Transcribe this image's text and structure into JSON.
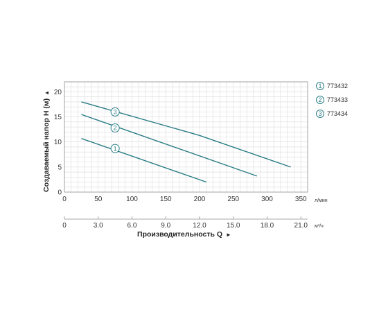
{
  "chart_data": {
    "type": "line",
    "ylabel": "Создаваемый напор H (м)",
    "xlabel": "Производительность Q",
    "y_axis_arrow": "▲",
    "x_axis_arrow": "►",
    "ylim": [
      0,
      22
    ],
    "y_ticks": [
      "0",
      "5",
      "10",
      "15",
      "20"
    ],
    "x_primary": {
      "unit": "л/мин",
      "range": [
        0,
        360
      ],
      "ticks": [
        "0",
        "50",
        "100",
        "150",
        "200",
        "250",
        "300",
        "350"
      ]
    },
    "x_secondary": {
      "unit": "м³/ч",
      "range": [
        0,
        21.6
      ],
      "ticks": [
        "0",
        "3.0",
        "6.0",
        "9.0",
        "12.0",
        "15.0",
        "18.0",
        "21.0"
      ]
    },
    "grid": true,
    "legend_position": "right",
    "line_color": "#2a7d86",
    "series": [
      {
        "name": "773432",
        "marker": "1",
        "marker_at": [
          75,
          8.7
        ],
        "x": [
          25,
          210
        ],
        "y": [
          10.7,
          2.0
        ]
      },
      {
        "name": "773433",
        "marker": "2",
        "marker_at": [
          75,
          12.8
        ],
        "x": [
          25,
          285
        ],
        "y": [
          15.5,
          3.2
        ]
      },
      {
        "name": "773434",
        "marker": "3",
        "marker_at": [
          75,
          16.0
        ],
        "x": [
          25,
          200,
          335
        ],
        "y": [
          18.0,
          11.3,
          5.0
        ]
      }
    ]
  }
}
